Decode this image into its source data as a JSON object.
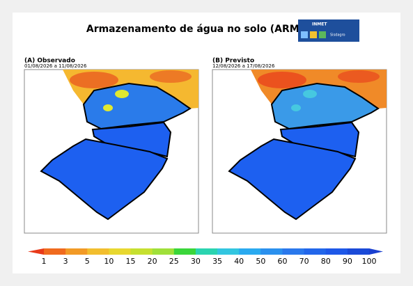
{
  "header": {
    "title": "Armazenamento de água no solo (ARM)",
    "logo": {
      "name": "INMET",
      "product": "Sisdagro"
    }
  },
  "panels": [
    {
      "label": "(A) Observado",
      "period": "01/08/2026 a 11/08/2026"
    },
    {
      "label": "(B) Previsto",
      "period": "12/08/2026 a 17/08/2026"
    }
  ],
  "colorbar": {
    "labels": [
      "1",
      "3",
      "5",
      "10",
      "15",
      "20",
      "25",
      "30",
      "35",
      "40",
      "50",
      "60",
      "70",
      "80",
      "90",
      "100"
    ]
  }
}
